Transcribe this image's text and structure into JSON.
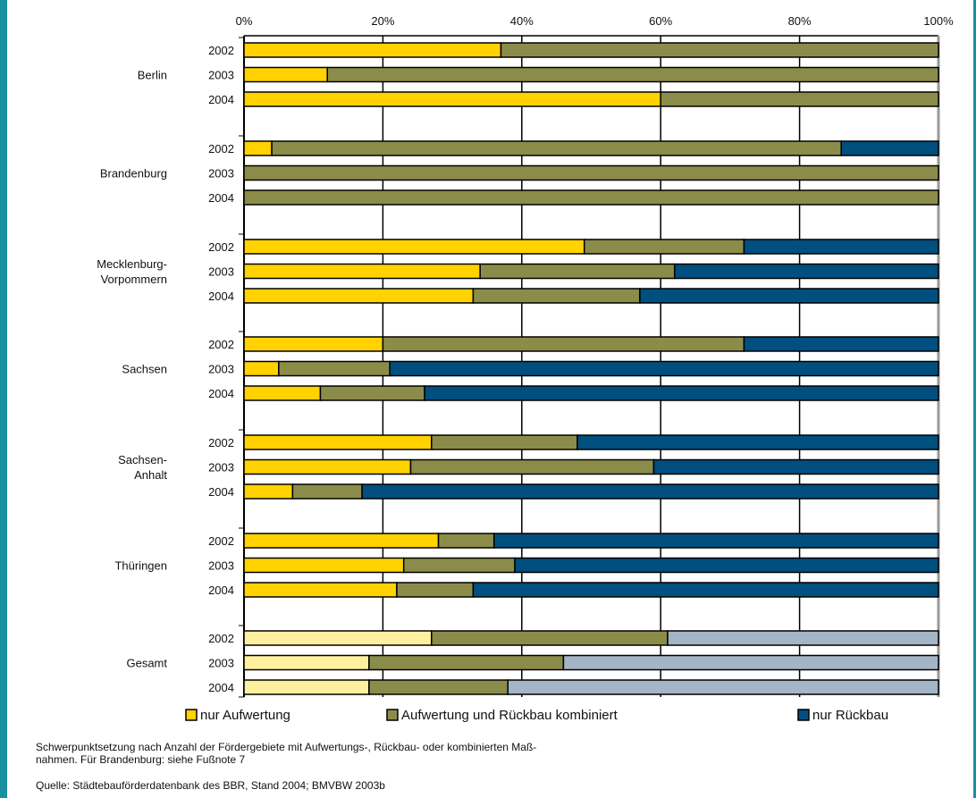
{
  "chart_data": {
    "type": "bar",
    "orientation": "horizontal",
    "stacked": "percent",
    "x_ticks": [
      "0%",
      "20%",
      "40%",
      "60%",
      "80%",
      "100%"
    ],
    "xlim": [
      0,
      100
    ],
    "grid": true,
    "legend_position": "bottom",
    "groups": [
      {
        "name": "Berlin",
        "name_lines": [
          "Berlin"
        ],
        "years": [
          "2002",
          "2003",
          "2004"
        ]
      },
      {
        "name": "Brandenburg",
        "name_lines": [
          "Brandenburg"
        ],
        "years": [
          "2002",
          "2003",
          "2004"
        ]
      },
      {
        "name": "Mecklenburg-Vorpommern",
        "name_lines": [
          "Mecklenburg-",
          "Vorpommern"
        ],
        "years": [
          "2002",
          "2003",
          "2004"
        ]
      },
      {
        "name": "Sachsen",
        "name_lines": [
          "Sachsen"
        ],
        "years": [
          "2002",
          "2003",
          "2004"
        ]
      },
      {
        "name": "Sachsen-Anhalt",
        "name_lines": [
          "Sachsen-",
          "Anhalt"
        ],
        "years": [
          "2002",
          "2003",
          "2004"
        ]
      },
      {
        "name": "Thüringen",
        "name_lines": [
          "Thüringen"
        ],
        "years": [
          "2002",
          "2003",
          "2004"
        ]
      },
      {
        "name": "Gesamt",
        "name_lines": [
          "Gesamt"
        ],
        "years": [
          "2002",
          "2003",
          "2004"
        ]
      }
    ],
    "series": [
      {
        "name": "nur Aufwertung",
        "color": "#ffd200",
        "color_gesamt": "#fff0a0",
        "values": [
          37,
          12,
          60,
          4,
          0,
          0,
          49,
          34,
          33,
          20,
          5,
          11,
          27,
          24,
          7,
          28,
          23,
          22,
          27,
          18,
          18
        ]
      },
      {
        "name": "Aufwertung und Rückbau kombiniert",
        "color": "#8c8c4a",
        "color_gesamt": "#8c8c4a",
        "values": [
          63,
          88,
          40,
          82,
          100,
          100,
          23,
          28,
          24,
          52,
          16,
          15,
          21,
          35,
          10,
          8,
          16,
          11,
          34,
          28,
          20
        ]
      },
      {
        "name": "nur Rückbau",
        "color": "#004f7f",
        "color_gesamt": "#a3b5c6",
        "values": [
          0,
          0,
          0,
          14,
          0,
          0,
          28,
          38,
          43,
          28,
          79,
          74,
          52,
          41,
          83,
          64,
          61,
          67,
          39,
          54,
          62
        ]
      }
    ]
  },
  "footnote": {
    "line1": "Schwerpunktsetzung nach Anzahl der Fördergebiete mit Aufwertungs-, Rückbau- oder kombinierten Maß-",
    "line2": "nahmen. Für Brandenburg: siehe Fußnote 7",
    "source": "Quelle: Städtebauförderdatenbank des BBR, Stand 2004; BMVBW 2003b"
  }
}
